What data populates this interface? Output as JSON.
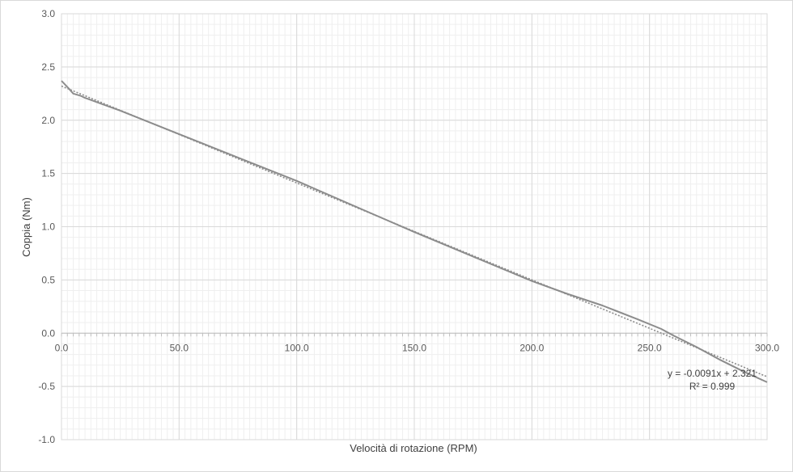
{
  "chart_data": {
    "type": "line",
    "title": "",
    "xlabel": "Velocità di rotazione (RPM)",
    "ylabel": "Coppia (Nm)",
    "xlim": [
      0,
      300
    ],
    "ylim": [
      -1.0,
      3.0
    ],
    "x_ticks": [
      0,
      50,
      100,
      150,
      200,
      250,
      300
    ],
    "x_tick_labels": [
      "0.0",
      "50.0",
      "100.0",
      "150.0",
      "200.0",
      "250.0",
      "300.0"
    ],
    "y_ticks": [
      -1.0,
      -0.5,
      0.0,
      0.5,
      1.0,
      1.5,
      2.0,
      2.5,
      3.0
    ],
    "y_tick_labels": [
      "-1.0",
      "-0.5",
      "0.0",
      "0.5",
      "1.0",
      "1.5",
      "2.0",
      "2.5",
      "3.0"
    ],
    "grid": {
      "major": true,
      "minor": true
    },
    "colors": {
      "series": "#8c8c8c",
      "trendline": "#8c8c8c",
      "major_grid": "#d9d9d9",
      "minor_grid": "#efefef"
    },
    "series": [
      {
        "x": [
          0,
          3,
          5,
          8,
          10,
          25,
          50,
          75,
          100,
          125,
          150,
          175,
          200,
          215,
          230,
          245,
          255,
          260,
          270,
          280,
          290,
          300
        ],
        "y": [
          2.37,
          2.3,
          2.25,
          2.23,
          2.21,
          2.09,
          1.87,
          1.65,
          1.43,
          1.19,
          0.95,
          0.72,
          0.49,
          0.37,
          0.26,
          0.13,
          0.04,
          -0.02,
          -0.13,
          -0.25,
          -0.36,
          -0.46
        ]
      }
    ],
    "trendline": {
      "type": "linear",
      "slope": -0.0091,
      "intercept": 2.321,
      "x_range": [
        0,
        300
      ],
      "equation_label": "y = -0.0091x + 2.321",
      "r2_label": "R² = 0.999"
    }
  }
}
